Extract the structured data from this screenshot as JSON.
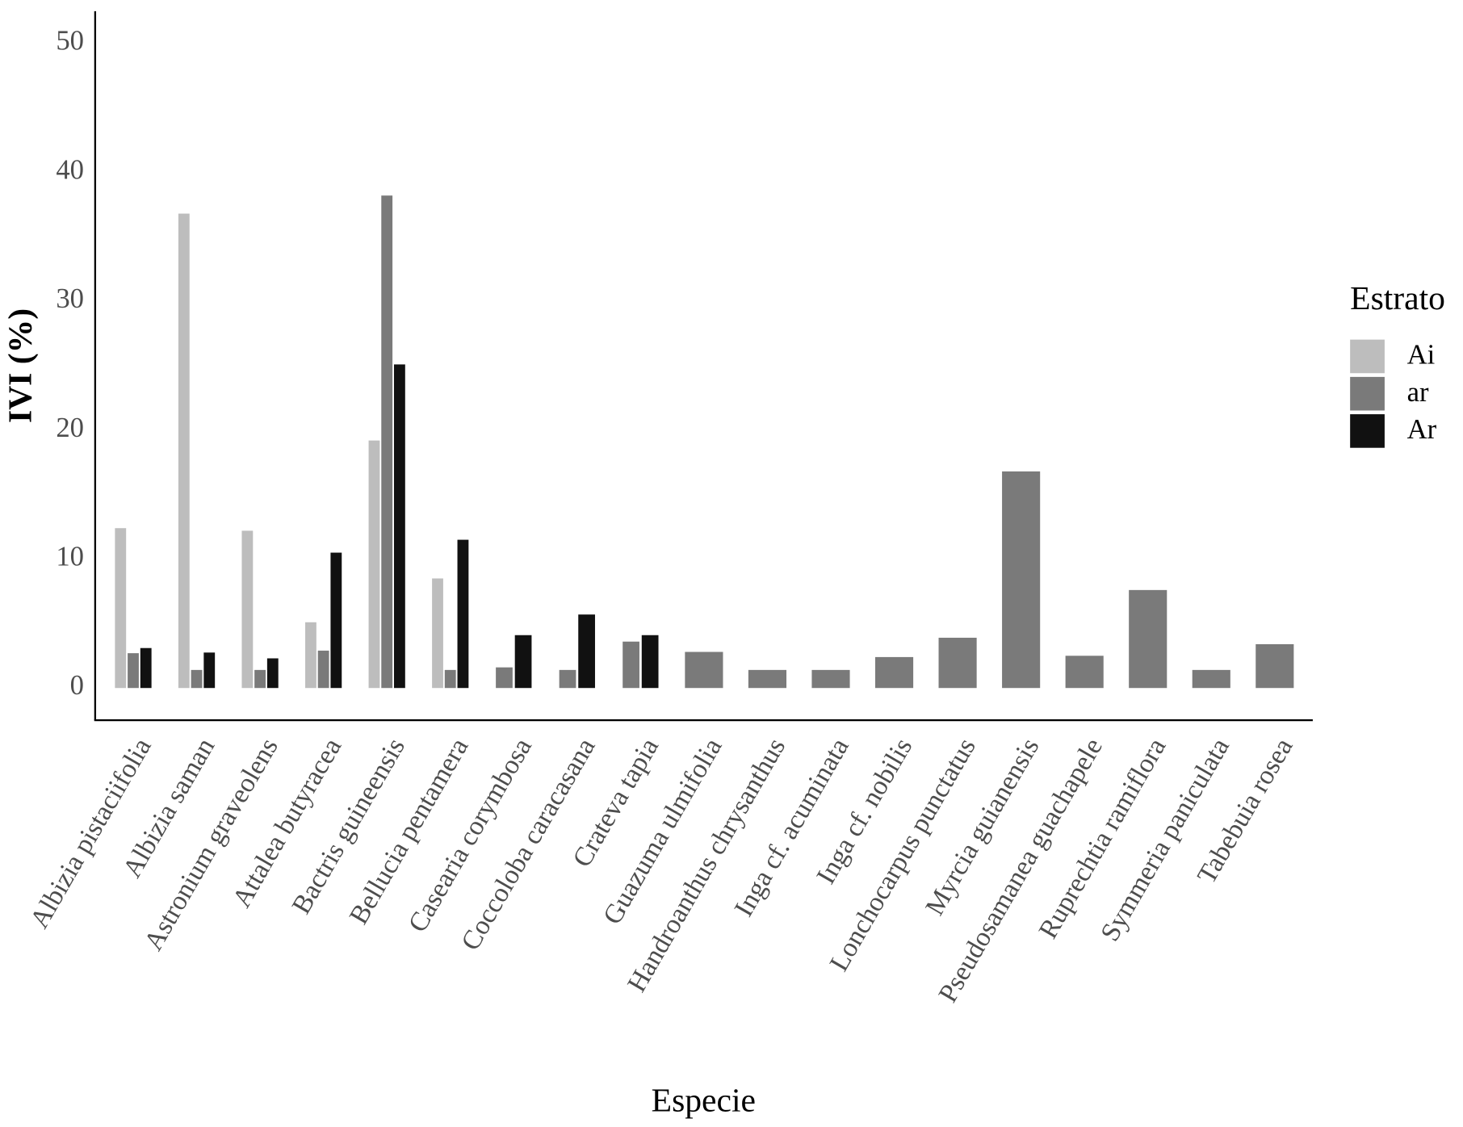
{
  "chart_data": {
    "type": "bar",
    "y_label": "IVI (%)",
    "x_label": "Especie",
    "legend_title": "Estrato",
    "categories": [
      "Albizia pistaciifolia",
      "Albizia saman",
      "Astronium graveolens",
      "Attalea butyracea",
      "Bactris guineensis",
      "Bellucia pentamera",
      "Casearia corymbosa",
      "Coccoloba caracasana",
      "Crateva tapia",
      "Guazuma ulmifolia",
      "Handroanthus chrysanthus",
      "Inga cf. acuminata",
      "Inga cf. nobilis",
      "Lonchocarpus punctatus",
      "Myrcia guianensis",
      "Pseudosamanea guachapele",
      "Ruprechtia ramiflora",
      "Symmeria paniculata",
      "Tabebuia rosea"
    ],
    "series": [
      {
        "name": "Ai",
        "color": "#bdbdbd",
        "values": [
          12.4,
          36.8,
          12.2,
          5.1,
          19.2,
          8.5,
          null,
          null,
          null,
          null,
          null,
          null,
          null,
          null,
          null,
          null,
          null,
          null,
          null
        ]
      },
      {
        "name": "ar",
        "color": "#7a7a7a",
        "values": [
          2.7,
          1.4,
          1.4,
          2.9,
          38.2,
          1.4,
          1.6,
          1.4,
          3.6,
          2.8,
          1.4,
          1.4,
          2.4,
          3.9,
          16.8,
          2.5,
          7.6,
          1.4,
          3.4
        ]
      },
      {
        "name": "Ar",
        "color": "#111111",
        "values": [
          3.1,
          2.75,
          2.3,
          10.5,
          25.1,
          11.5,
          4.1,
          5.7,
          4.1,
          null,
          null,
          null,
          null,
          null,
          null,
          null,
          null,
          null,
          null
        ]
      }
    ],
    "ylim": [
      -2.5,
      52.5
    ],
    "yticks": [
      0,
      10,
      20,
      30,
      40,
      50
    ],
    "grid": false,
    "legend": "right"
  }
}
